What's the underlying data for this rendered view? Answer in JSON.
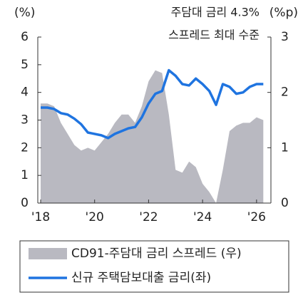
{
  "chart_data": {
    "type": "line-area",
    "y_label": "(%)",
    "y2_label": "(%p)",
    "annotations": [
      "주담대 금리 4.3%",
      "스프레드 최대 수준"
    ],
    "x": [
      2018,
      2018.25,
      2018.5,
      2018.75,
      2019,
      2019.25,
      2019.5,
      2019.75,
      2020,
      2020.25,
      2020.5,
      2020.75,
      2021,
      2021.25,
      2021.5,
      2021.75,
      2022,
      2022.25,
      2022.5,
      2022.75,
      2023,
      2023.25,
      2023.5,
      2023.75,
      2024,
      2024.25,
      2024.5,
      2024.75,
      2025,
      2025.25,
      2025.5,
      2025.75,
      2026,
      2026.25
    ],
    "series": [
      {
        "name": "CD91-주담대 금리 스프레드 (우)",
        "color": "#b9b9c1",
        "kind": "area",
        "axis": "y2",
        "values": [
          1.8,
          1.8,
          1.75,
          1.45,
          1.25,
          1.05,
          0.95,
          1.0,
          0.95,
          1.1,
          1.25,
          1.45,
          1.6,
          1.6,
          1.45,
          1.75,
          2.2,
          2.4,
          2.35,
          1.6,
          0.6,
          0.55,
          0.75,
          0.65,
          0.35,
          0.2,
          0.0,
          0.6,
          1.3,
          1.4,
          1.45,
          1.45,
          1.55,
          1.5
        ]
      },
      {
        "name": "신규 주택담보대출 금리(좌)",
        "color": "#1f74e0",
        "kind": "line",
        "values": [
          3.45,
          3.45,
          3.4,
          3.25,
          3.2,
          3.05,
          2.85,
          2.55,
          2.5,
          2.45,
          2.35,
          2.5,
          2.6,
          2.7,
          2.75,
          3.1,
          3.6,
          3.95,
          4.05,
          4.8,
          4.6,
          4.3,
          4.25,
          4.5,
          4.3,
          4.05,
          3.55,
          4.3,
          4.2,
          3.95,
          4.0,
          4.2,
          4.3,
          4.3
        ]
      }
    ],
    "xlim": [
      2018,
      2026.4
    ],
    "xticks": [
      {
        "value": 2018,
        "label": "'18"
      },
      {
        "value": 2020,
        "label": "'20"
      },
      {
        "value": 2022,
        "label": "'22"
      },
      {
        "value": 2024,
        "label": "'24"
      },
      {
        "value": 2026,
        "label": "'26"
      }
    ],
    "ylim": [
      0,
      6
    ],
    "yticks": [
      0,
      1,
      2,
      3,
      4,
      5,
      6
    ],
    "y2lim": [
      0,
      3
    ],
    "y2ticks": [
      0,
      1,
      2,
      3
    ]
  }
}
